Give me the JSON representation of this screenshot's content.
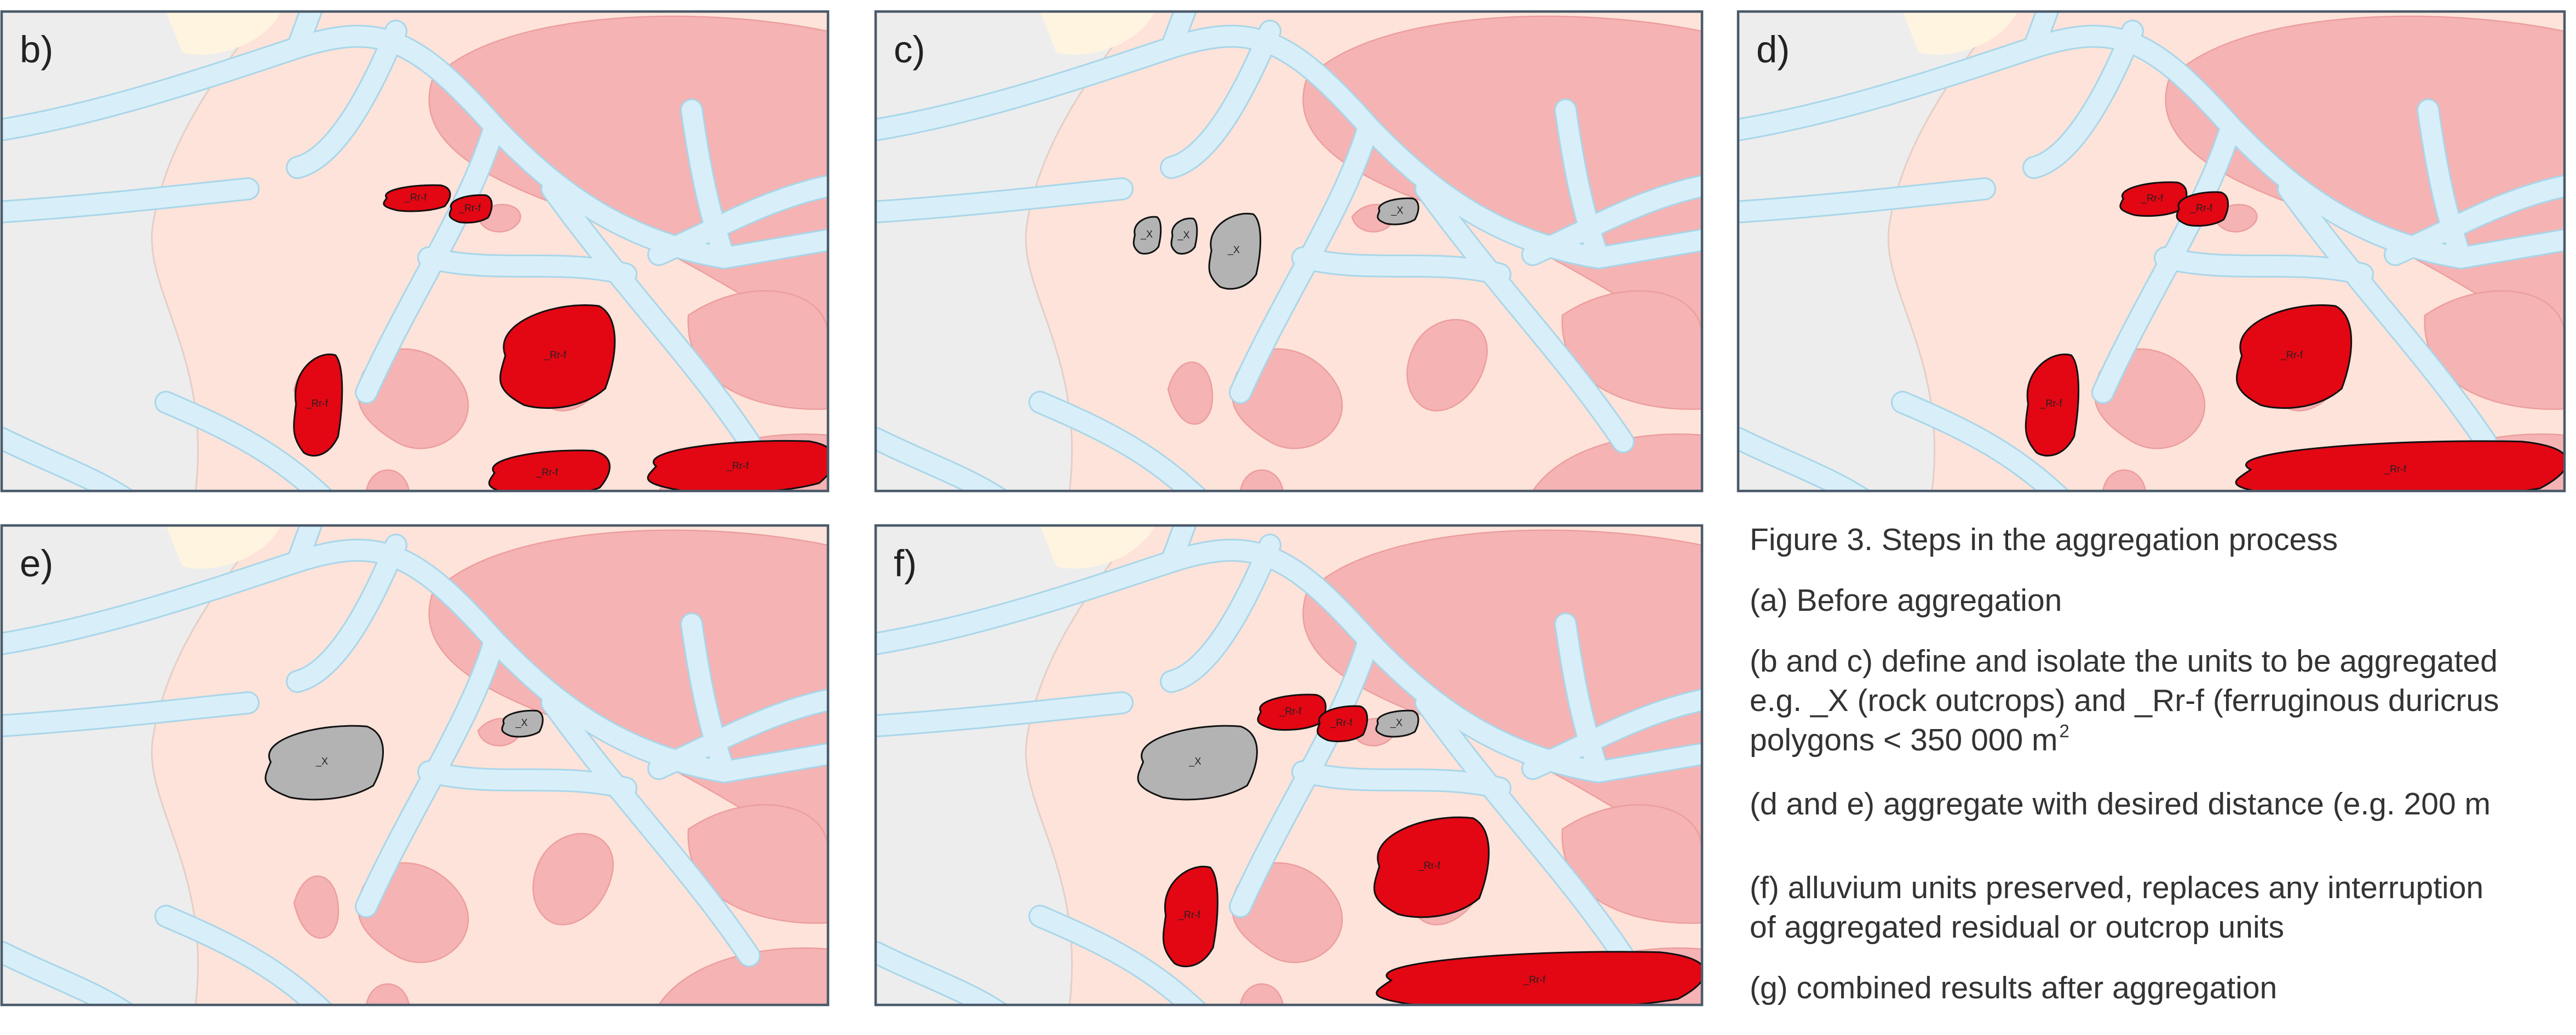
{
  "panels": [
    {
      "label": "b)",
      "polygons": [
        {
          "label": "_Rr-f"
        },
        {
          "label": "_Rr-f"
        },
        {
          "label": "_Rr-f"
        },
        {
          "label": "_Rr-f"
        },
        {
          "label": "_Rr-f"
        },
        {
          "label": "_Rr-f"
        }
      ]
    },
    {
      "label": "c)",
      "polygons": [
        {
          "label": "_X"
        },
        {
          "label": "_X"
        },
        {
          "label": "_X"
        },
        {
          "label": "_X"
        }
      ]
    },
    {
      "label": "d)",
      "polygons": [
        {
          "label": "_Rr-f"
        },
        {
          "label": "_Rr-f"
        },
        {
          "label": "_Rr-f"
        },
        {
          "label": "_Rr-f"
        },
        {
          "label": "_Rr-f"
        }
      ]
    },
    {
      "label": "e)",
      "polygons": [
        {
          "label": "_X"
        },
        {
          "label": "_X"
        }
      ]
    },
    {
      "label": "f)",
      "polygons": [
        {
          "label": "_X"
        },
        {
          "label": "_Rr-f"
        },
        {
          "label": "_Rr-f"
        },
        {
          "label": "_X"
        },
        {
          "label": "_Rr-f"
        },
        {
          "label": "_Rr-f"
        },
        {
          "label": "_Rr-f"
        }
      ]
    }
  ],
  "caption": {
    "title": "Figure 3. Steps in the aggregation process",
    "items": [
      [
        "(a) Before aggregation"
      ],
      [
        "(b and c) define and isolate the units to be aggregated",
        "e.g. _X (rock outcrops) and _Rr-f (ferruginous duricrus",
        "polygons < 350 000 m"
      ],
      [
        "(d and e) aggregate with desired distance (e.g. 200 m"
      ],
      [
        "(f) alluvium units preserved, replaces any interruption",
        "of aggregated residual or outcrop units"
      ],
      [
        "(g) combined results after aggregation"
      ]
    ],
    "superscript": "2"
  }
}
